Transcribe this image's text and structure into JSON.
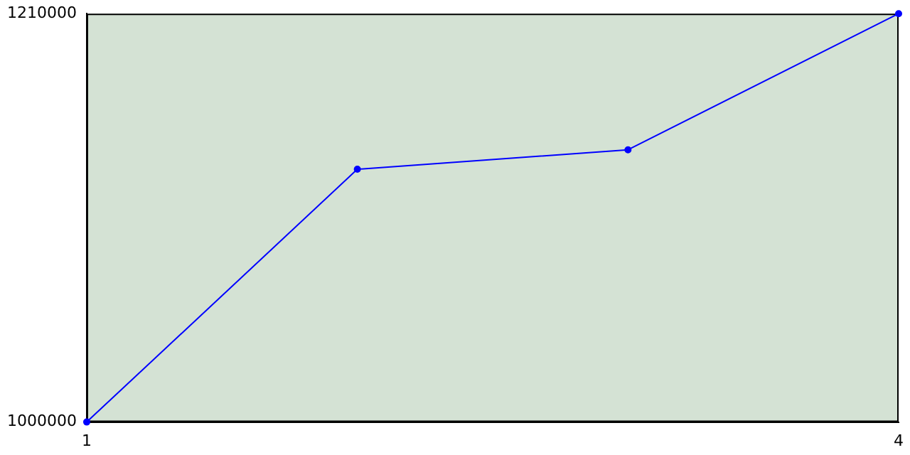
{
  "chart_data": {
    "type": "line",
    "x": [
      1,
      2,
      3,
      4
    ],
    "series": [
      {
        "color": "#0000ff",
        "values": [
          1000000,
          1130000,
          1140000,
          1210000
        ]
      }
    ],
    "xlim": [
      1,
      4
    ],
    "xticks": [
      1,
      4
    ],
    "ylim": [
      1000000,
      1210000
    ],
    "yticks": [
      1000000,
      1210000
    ],
    "grid": false,
    "legend": false,
    "marker": "circle",
    "line_style": "solid"
  }
}
